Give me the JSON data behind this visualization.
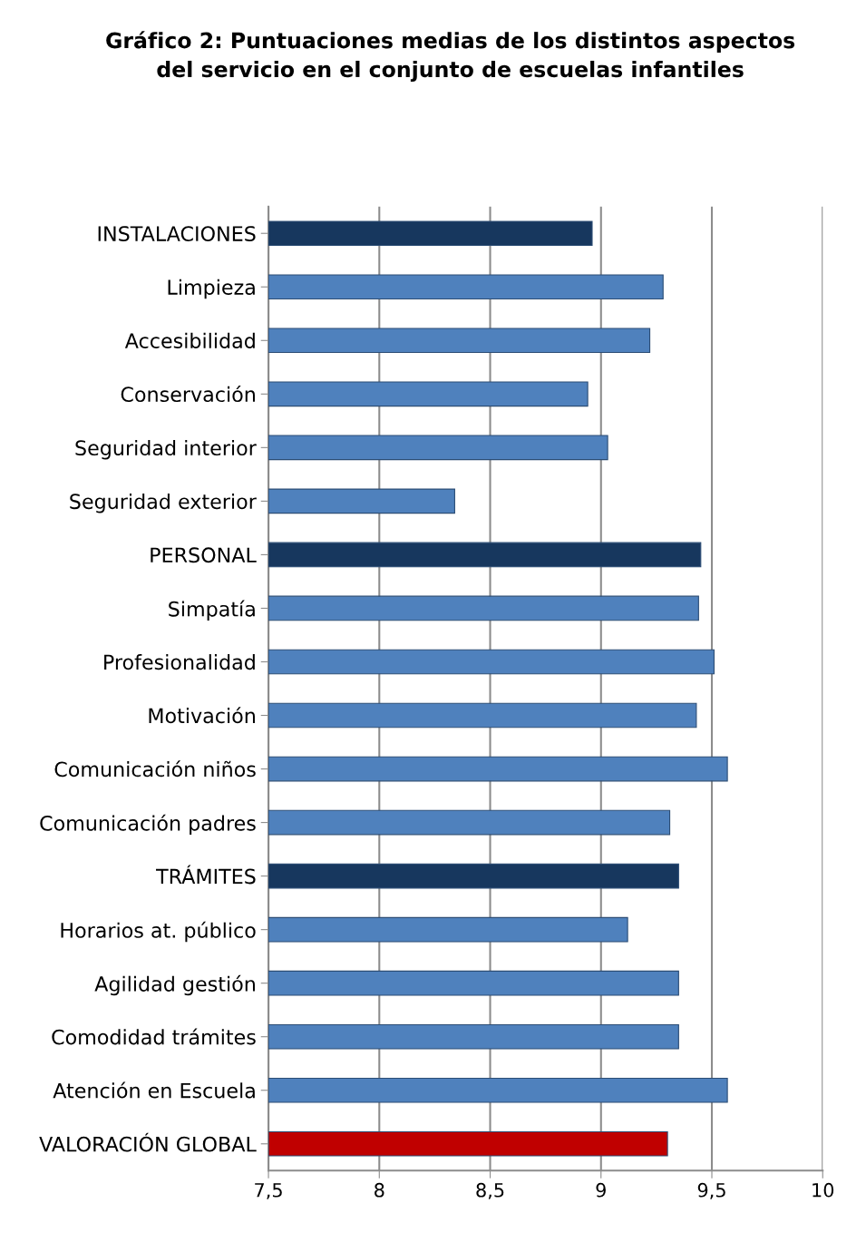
{
  "chart_data": {
    "type": "bar",
    "orientation": "horizontal",
    "title": "Gráfico 2: Puntuaciones medias de los distintos aspectos\ndel servicio en el conjunto de escuelas infantiles",
    "categories": [
      "INSTALACIONES",
      "Limpieza",
      "Accesibilidad",
      "Conservación",
      "Seguridad interior",
      "Seguridad exterior",
      "PERSONAL",
      "Simpatía",
      "Profesionalidad",
      "Motivación",
      "Comunicación niños",
      "Comunicación padres",
      "TRÁMITES",
      "Horarios at. público",
      "Agilidad gestión",
      "Comodidad trámites",
      "Atención en Escuela",
      "VALORACIÓN GLOBAL"
    ],
    "values": [
      8.96,
      9.28,
      9.22,
      8.94,
      9.03,
      8.34,
      9.45,
      9.44,
      9.51,
      9.43,
      9.57,
      9.31,
      9.35,
      9.12,
      9.35,
      9.35,
      9.57,
      9.3
    ],
    "colors": [
      "#17375e",
      "#4f81bd",
      "#4f81bd",
      "#4f81bd",
      "#4f81bd",
      "#4f81bd",
      "#17375e",
      "#4f81bd",
      "#4f81bd",
      "#4f81bd",
      "#4f81bd",
      "#4f81bd",
      "#17375e",
      "#4f81bd",
      "#4f81bd",
      "#4f81bd",
      "#4f81bd",
      "#c00000"
    ],
    "xlim": [
      7.5,
      10
    ],
    "xticks": [
      {
        "value": 7.5,
        "label": "7,5"
      },
      8,
      {
        "value": 8.5,
        "label": "8,5"
      },
      9,
      {
        "value": 9.5,
        "label": "9,5"
      },
      10
    ],
    "grid": "x"
  }
}
